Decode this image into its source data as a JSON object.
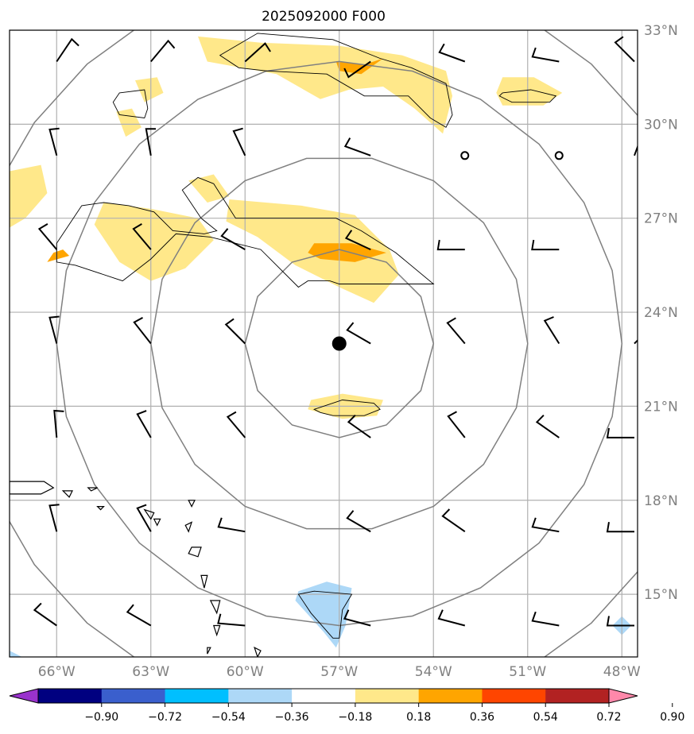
{
  "title": "2025092000 F000",
  "map": {
    "lon_range": [
      -67.5,
      -47.5
    ],
    "lat_range": [
      13,
      33
    ],
    "center": {
      "lon": -57,
      "lat": 23
    },
    "lon_ticks": [
      {
        "value": -66,
        "label": "66°W"
      },
      {
        "value": -63,
        "label": "63°W"
      },
      {
        "value": -60,
        "label": "60°W"
      },
      {
        "value": -57,
        "label": "57°W"
      },
      {
        "value": -54,
        "label": "54°W"
      },
      {
        "value": -51,
        "label": "51°W"
      },
      {
        "value": -48,
        "label": "48°W"
      }
    ],
    "lat_ticks": [
      {
        "value": 33,
        "label": "33°N"
      },
      {
        "value": 30,
        "label": "30°N"
      },
      {
        "value": 27,
        "label": "27°N"
      },
      {
        "value": 24,
        "label": "24°N"
      },
      {
        "value": 21,
        "label": "21°N"
      },
      {
        "value": 18,
        "label": "18°N"
      },
      {
        "value": 15,
        "label": "15°N"
      }
    ],
    "range_rings_deg": [
      3,
      6,
      9,
      12
    ]
  },
  "colorbar": {
    "ticks": [
      "−0.90",
      "−0.72",
      "−0.54",
      "−0.36",
      "−0.18",
      "0.18",
      "0.36",
      "0.54",
      "0.72",
      "0.90"
    ],
    "under_color": "#9932cc",
    "over_color": "#ff88aa",
    "bins": [
      "#000080",
      "#3a5fcd",
      "#00bfff",
      "#add8f7",
      "#ffffff",
      "#ffe88a",
      "#ffa500",
      "#ff4500",
      "#b22222"
    ]
  },
  "fields": {
    "positive_light": [
      [
        [
          -61.5,
          32.8
        ],
        [
          -59.5,
          32.6
        ],
        [
          -57,
          32.5
        ],
        [
          -55,
          32.2
        ],
        [
          -53.6,
          31.7
        ],
        [
          -53.4,
          30.9
        ],
        [
          -53.7,
          29.7
        ],
        [
          -54.6,
          30.5
        ],
        [
          -55.6,
          31.2
        ],
        [
          -56.7,
          31.1
        ],
        [
          -57.6,
          30.8
        ],
        [
          -59,
          31.6
        ],
        [
          -61.2,
          32.0
        ]
      ],
      [
        [
          -67.5,
          28.5
        ],
        [
          -66.5,
          28.7
        ],
        [
          -66.3,
          27.8
        ],
        [
          -67.0,
          27.0
        ],
        [
          -67.5,
          26.7
        ]
      ],
      [
        [
          -64.5,
          27.5
        ],
        [
          -63.0,
          27.3
        ],
        [
          -61.5,
          27.0
        ],
        [
          -61.0,
          26.3
        ],
        [
          -61.9,
          25.4
        ],
        [
          -63.0,
          25.0
        ],
        [
          -64.0,
          25.6
        ],
        [
          -64.8,
          26.8
        ]
      ],
      [
        [
          -60.5,
          27.6
        ],
        [
          -58.2,
          27.4
        ],
        [
          -56.5,
          27.1
        ],
        [
          -55.4,
          26.0
        ],
        [
          -55.1,
          25.2
        ],
        [
          -55.9,
          24.3
        ],
        [
          -57.0,
          24.8
        ],
        [
          -58.4,
          25.5
        ],
        [
          -59.6,
          26.4
        ],
        [
          -60.6,
          26.9
        ]
      ],
      [
        [
          -61.8,
          28.2
        ],
        [
          -61.0,
          28.4
        ],
        [
          -60.5,
          27.7
        ],
        [
          -61.2,
          27.5
        ]
      ],
      [
        [
          -63.5,
          31.4
        ],
        [
          -62.8,
          31.5
        ],
        [
          -62.6,
          31.0
        ],
        [
          -63.2,
          30.7
        ]
      ],
      [
        [
          -64.1,
          30.4
        ],
        [
          -63.6,
          30.5
        ],
        [
          -63.3,
          29.9
        ],
        [
          -63.8,
          29.6
        ]
      ],
      [
        [
          -51.8,
          31.5
        ],
        [
          -50.8,
          31.5
        ],
        [
          -49.9,
          31.0
        ],
        [
          -50.5,
          30.6
        ],
        [
          -51.8,
          30.6
        ],
        [
          -52.0,
          31.0
        ]
      ],
      [
        [
          -57.9,
          21.2
        ],
        [
          -56.9,
          21.4
        ],
        [
          -55.6,
          21.2
        ],
        [
          -55.8,
          20.7
        ],
        [
          -56.9,
          20.6
        ],
        [
          -58.0,
          20.9
        ]
      ]
    ],
    "positive_mid": [
      [
        [
          -57.1,
          32.0
        ],
        [
          -56.2,
          31.9
        ],
        [
          -55.6,
          32.1
        ],
        [
          -56.3,
          31.6
        ],
        [
          -57.0,
          31.7
        ]
      ],
      [
        [
          -57.8,
          26.2
        ],
        [
          -56.6,
          26.2
        ],
        [
          -55.5,
          25.9
        ],
        [
          -56.5,
          25.6
        ],
        [
          -57.6,
          25.7
        ],
        [
          -58.0,
          25.9
        ]
      ],
      [
        [
          -66.1,
          25.9
        ],
        [
          -65.8,
          26.0
        ],
        [
          -65.6,
          25.8
        ],
        [
          -66.3,
          25.6
        ]
      ]
    ],
    "negative_light": [
      [
        [
          -58.3,
          15.1
        ],
        [
          -57.4,
          15.4
        ],
        [
          -56.6,
          15.2
        ],
        [
          -56.8,
          14.0
        ],
        [
          -57.1,
          13.3
        ],
        [
          -57.5,
          13.8
        ],
        [
          -58.4,
          14.8
        ]
      ],
      [
        [
          -67.5,
          13.2
        ],
        [
          -67.1,
          13.0
        ],
        [
          -67.5,
          13.0
        ]
      ],
      [
        [
          -48.3,
          14.0
        ],
        [
          -48.0,
          14.3
        ],
        [
          -47.7,
          14.0
        ],
        [
          -48.0,
          13.7
        ]
      ]
    ],
    "contours": [
      [
        [
          -60.8,
          32.2
        ],
        [
          -59.6,
          32.9
        ],
        [
          -57.2,
          32.7
        ],
        [
          -55.7,
          32.1
        ],
        [
          -54.7,
          31.8
        ],
        [
          -53.6,
          31.3
        ],
        [
          -53.4,
          30.3
        ],
        [
          -53.6,
          29.9
        ],
        [
          -54.1,
          30.2
        ],
        [
          -54.8,
          30.9
        ],
        [
          -56.2,
          30.9
        ],
        [
          -57.4,
          31.6
        ],
        [
          -59.3,
          31.7
        ],
        [
          -60.2,
          31.8
        ]
      ],
      [
        [
          -66.0,
          26.2
        ],
        [
          -65.2,
          27.4
        ],
        [
          -64.5,
          27.5
        ],
        [
          -63.7,
          27.4
        ],
        [
          -62.9,
          27.2
        ],
        [
          -62.3,
          26.6
        ],
        [
          -61.3,
          26.5
        ],
        [
          -60.9,
          26.6
        ],
        [
          -61.4,
          27.0
        ],
        [
          -62.0,
          27.9
        ],
        [
          -61.5,
          28.3
        ],
        [
          -61.0,
          28.1
        ],
        [
          -60.3,
          27.0
        ],
        [
          -57.1,
          27.0
        ],
        [
          -56.3,
          26.6
        ],
        [
          -55.2,
          25.9
        ],
        [
          -54.0,
          24.9
        ],
        [
          -57.0,
          24.9
        ],
        [
          -57.3,
          25.0
        ],
        [
          -58.0,
          25.0
        ],
        [
          -58.3,
          24.8
        ],
        [
          -59.5,
          26.0
        ],
        [
          -61.1,
          26.4
        ],
        [
          -62.2,
          26.5
        ],
        [
          -63.0,
          25.7
        ],
        [
          -63.9,
          25.0
        ],
        [
          -65.4,
          25.5
        ],
        [
          -66.0,
          25.6
        ]
      ],
      [
        [
          -64.0,
          31.0
        ],
        [
          -63.2,
          31.1
        ],
        [
          -63.1,
          30.5
        ],
        [
          -63.2,
          30.2
        ],
        [
          -64.0,
          30.3
        ],
        [
          -64.2,
          30.7
        ]
      ],
      [
        [
          -51.8,
          31.0
        ],
        [
          -50.9,
          31.1
        ],
        [
          -50.1,
          30.9
        ],
        [
          -50.3,
          30.7
        ],
        [
          -51.5,
          30.7
        ],
        [
          -51.9,
          30.9
        ]
      ],
      [
        [
          -57.8,
          20.9
        ],
        [
          -56.9,
          21.2
        ],
        [
          -55.9,
          21.1
        ],
        [
          -55.7,
          20.9
        ],
        [
          -56.2,
          20.7
        ],
        [
          -57.2,
          20.7
        ],
        [
          -57.6,
          20.8
        ]
      ],
      [
        [
          -58.3,
          15.0
        ],
        [
          -57.8,
          15.1
        ],
        [
          -56.6,
          15.0
        ],
        [
          -56.9,
          14.5
        ],
        [
          -57.0,
          13.6
        ],
        [
          -57.2,
          13.6
        ],
        [
          -57.9,
          14.4
        ],
        [
          -58.3,
          15.0
        ]
      ]
    ],
    "islands": [
      [
        [
          -67.5,
          18.6
        ],
        [
          -66.4,
          18.6
        ],
        [
          -66.1,
          18.4
        ],
        [
          -66.5,
          18.2
        ],
        [
          -67.5,
          18.2
        ]
      ],
      [
        [
          -65.8,
          18.3
        ],
        [
          -65.5,
          18.3
        ],
        [
          -65.6,
          18.1
        ]
      ],
      [
        [
          -65.0,
          18.4
        ],
        [
          -64.7,
          18.4
        ],
        [
          -64.9,
          18.3
        ]
      ],
      [
        [
          -64.7,
          17.8
        ],
        [
          -64.5,
          17.8
        ],
        [
          -64.6,
          17.7
        ]
      ],
      [
        [
          -63.2,
          17.7
        ],
        [
          -62.9,
          17.6
        ],
        [
          -63.0,
          17.4
        ]
      ],
      [
        [
          -62.9,
          17.4
        ],
        [
          -62.7,
          17.4
        ],
        [
          -62.8,
          17.2
        ]
      ],
      [
        [
          -61.9,
          17.2
        ],
        [
          -61.7,
          17.3
        ],
        [
          -61.8,
          17.0
        ]
      ],
      [
        [
          -61.7,
          16.5
        ],
        [
          -61.4,
          16.5
        ],
        [
          -61.5,
          16.2
        ],
        [
          -61.8,
          16.3
        ]
      ],
      [
        [
          -61.4,
          15.6
        ],
        [
          -61.2,
          15.6
        ],
        [
          -61.3,
          15.2
        ]
      ],
      [
        [
          -61.1,
          14.8
        ],
        [
          -60.8,
          14.8
        ],
        [
          -60.9,
          14.4
        ]
      ],
      [
        [
          -61.0,
          14.0
        ],
        [
          -60.8,
          14.0
        ],
        [
          -60.9,
          13.7
        ]
      ],
      [
        [
          -61.2,
          13.3
        ],
        [
          -61.1,
          13.3
        ],
        [
          -61.2,
          13.1
        ]
      ],
      [
        [
          -59.7,
          13.3
        ],
        [
          -59.5,
          13.2
        ],
        [
          -59.6,
          13.0
        ]
      ],
      [
        [
          -61.8,
          18.0
        ],
        [
          -61.6,
          18.0
        ],
        [
          -61.7,
          17.8
        ]
      ]
    ]
  },
  "barbs": [
    {
      "lon": -66,
      "lat": 32,
      "dir": 34,
      "spd": 10
    },
    {
      "lon": -63,
      "lat": 32,
      "dir": 40,
      "spd": 10
    },
    {
      "lon": -60,
      "lat": 32,
      "dir": 48,
      "spd": 10
    },
    {
      "lon": -56,
      "lat": 32,
      "dir": 235,
      "spd": 10
    },
    {
      "lon": -53,
      "lat": 32,
      "dir": 290,
      "spd": 10
    },
    {
      "lon": -50,
      "lat": 32,
      "dir": 280,
      "spd": 10
    },
    {
      "lon": -47.6,
      "lat": 32,
      "dir": 315,
      "spd": 10
    },
    {
      "lon": -66,
      "lat": 29,
      "dir": 345,
      "spd": 10
    },
    {
      "lon": -63,
      "lat": 29,
      "dir": 350,
      "spd": 10
    },
    {
      "lon": -60,
      "lat": 29,
      "dir": 335,
      "spd": 10
    },
    {
      "lon": -56,
      "lat": 29,
      "dir": 290,
      "spd": 10
    },
    {
      "lon": -53,
      "lat": 29,
      "dir": 0,
      "spd": 0
    },
    {
      "lon": -50,
      "lat": 29,
      "dir": 0,
      "spd": 0
    },
    {
      "lon": -47.6,
      "lat": 29,
      "dir": 20,
      "spd": 10
    },
    {
      "lon": -66,
      "lat": 26,
      "dir": 320,
      "spd": 10
    },
    {
      "lon": -63,
      "lat": 26,
      "dir": 320,
      "spd": 10
    },
    {
      "lon": -60,
      "lat": 26,
      "dir": 300,
      "spd": 10
    },
    {
      "lon": -56,
      "lat": 26,
      "dir": 295,
      "spd": 10
    },
    {
      "lon": -53,
      "lat": 26,
      "dir": 270,
      "spd": 10
    },
    {
      "lon": -50,
      "lat": 26,
      "dir": 270,
      "spd": 10
    },
    {
      "lon": -66,
      "lat": 23,
      "dir": 345,
      "spd": 10
    },
    {
      "lon": -63,
      "lat": 23,
      "dir": 322,
      "spd": 10
    },
    {
      "lon": -60,
      "lat": 23,
      "dir": 315,
      "spd": 10
    },
    {
      "lon": -56,
      "lat": 23,
      "dir": 300,
      "spd": 10
    },
    {
      "lon": -53,
      "lat": 23,
      "dir": 320,
      "spd": 10
    },
    {
      "lon": -50,
      "lat": 23,
      "dir": 328,
      "spd": 10
    },
    {
      "lon": -47.6,
      "lat": 23,
      "dir": 45,
      "spd": 10
    },
    {
      "lon": -66,
      "lat": 20,
      "dir": 355,
      "spd": 10
    },
    {
      "lon": -63,
      "lat": 20,
      "dir": 330,
      "spd": 10
    },
    {
      "lon": -60,
      "lat": 20,
      "dir": 320,
      "spd": 10
    },
    {
      "lon": -56,
      "lat": 20,
      "dir": 305,
      "spd": 10
    },
    {
      "lon": -53,
      "lat": 20,
      "dir": 322,
      "spd": 10
    },
    {
      "lon": -50,
      "lat": 20,
      "dir": 305,
      "spd": 10
    },
    {
      "lon": -47.6,
      "lat": 20,
      "dir": 270,
      "spd": 10
    },
    {
      "lon": -66,
      "lat": 17,
      "dir": 345,
      "spd": 10
    },
    {
      "lon": -63,
      "lat": 17,
      "dir": 330,
      "spd": 10
    },
    {
      "lon": -60,
      "lat": 17,
      "dir": 280,
      "spd": 10
    },
    {
      "lon": -56,
      "lat": 17,
      "dir": 300,
      "spd": 10
    },
    {
      "lon": -53,
      "lat": 17,
      "dir": 305,
      "spd": 10
    },
    {
      "lon": -50,
      "lat": 17,
      "dir": 280,
      "spd": 10
    },
    {
      "lon": -47.6,
      "lat": 17,
      "dir": 270,
      "spd": 10
    },
    {
      "lon": -66,
      "lat": 14,
      "dir": 305,
      "spd": 10
    },
    {
      "lon": -63,
      "lat": 14,
      "dir": 300,
      "spd": 10
    },
    {
      "lon": -60,
      "lat": 14,
      "dir": 275,
      "spd": 10
    },
    {
      "lon": -56,
      "lat": 14,
      "dir": 285,
      "spd": 10
    },
    {
      "lon": -53,
      "lat": 14,
      "dir": 285,
      "spd": 10
    },
    {
      "lon": -50,
      "lat": 14,
      "dir": 280,
      "spd": 10
    },
    {
      "lon": -47.6,
      "lat": 14,
      "dir": 270,
      "spd": 10
    }
  ]
}
